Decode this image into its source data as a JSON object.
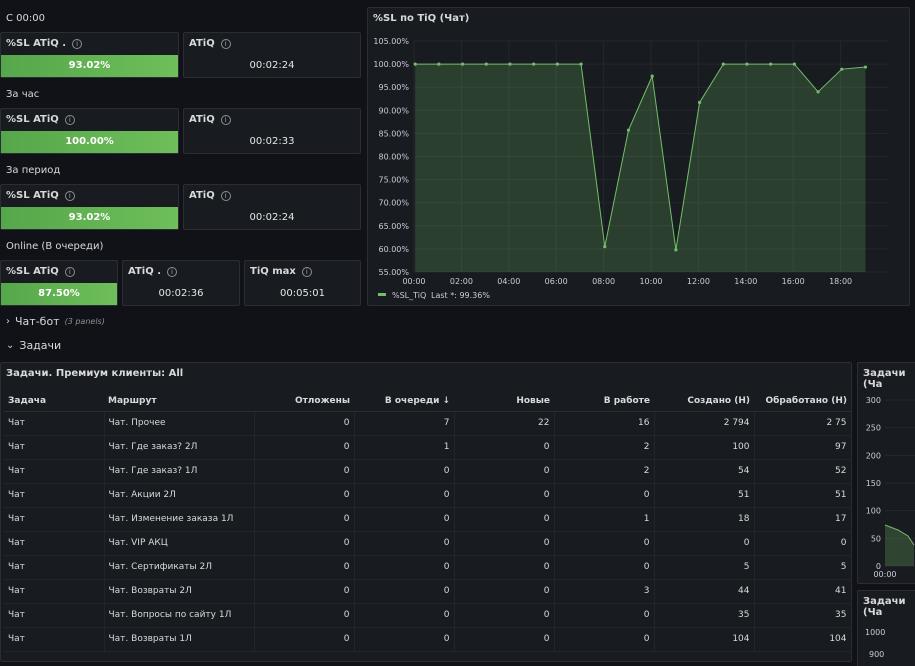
{
  "groups": [
    {
      "label": "С 00:00",
      "sl_title": "%SL ATiQ .",
      "sl_value": "93.02%",
      "atiq_title": "ATiQ",
      "atiq_value": "00:02:24"
    },
    {
      "label": "За час",
      "sl_title": "%SL ATiQ",
      "sl_value": "100.00%",
      "atiq_title": "ATiQ",
      "atiq_value": "00:02:33"
    },
    {
      "label": "За период",
      "sl_title": "%SL ATiQ",
      "sl_value": "93.02%",
      "atiq_title": "ATiQ",
      "atiq_value": "00:02:24"
    }
  ],
  "online": {
    "label": "Online (В очереди)",
    "sl_title": "%SL ATiQ",
    "sl_value": "87.50%",
    "atiq_title": "ATiQ .",
    "atiq_value": "00:02:36",
    "tiqmax_title": "TiQ max",
    "tiqmax_value": "00:05:01"
  },
  "colors": {
    "accent_green": "#56a64b",
    "line_green": "#73bf69",
    "bg": "#111217",
    "panel": "#181b1f"
  },
  "chart": {
    "title": "%SL по TiQ (Чат)",
    "legend_label": "%SL_TiQ",
    "legend_last": "Last *: 99.36%"
  },
  "chart_data": {
    "type": "area",
    "series": [
      {
        "name": "%SL_TiQ",
        "x": [
          0,
          1,
          2,
          3,
          4,
          5,
          6,
          7,
          8,
          9,
          10,
          11,
          12,
          13,
          14,
          15,
          16,
          17,
          18,
          19
        ],
        "values": [
          100,
          100,
          100,
          100,
          100,
          100,
          100,
          100,
          60.5,
          85.7,
          97.4,
          59.8,
          91.7,
          100,
          100,
          100,
          100,
          94,
          98.9,
          99.36
        ]
      }
    ],
    "x_ticks": [
      "00:00",
      "02:00",
      "04:00",
      "06:00",
      "08:00",
      "10:00",
      "12:00",
      "14:00",
      "16:00",
      "18:00"
    ],
    "y_ticks": [
      "105.00%",
      "100.00%",
      "95.00%",
      "90.00%",
      "85.00%",
      "80.00%",
      "75.00%",
      "70.00%",
      "65.00%",
      "60.00%",
      "55.00%"
    ],
    "ylim": [
      55,
      105
    ],
    "xlim": [
      0,
      20
    ],
    "grid": true,
    "legend": "bottom-left"
  },
  "rows": {
    "chatbot": {
      "title": "Чат-бот",
      "sub": "(3 panels)"
    },
    "tasks": {
      "title": "Задачи"
    }
  },
  "table": {
    "title": "Задачи. Премиум клиенты: All",
    "columns": [
      "Задача",
      "Маршрут",
      "Отложены",
      "В очереди",
      "Новые",
      "В работе",
      "Создано (Н)",
      "Обработано (Н)"
    ],
    "sort_icon": "arrow-down-icon",
    "rows": [
      [
        "Чат",
        "Чат. Прочее",
        "0",
        "7",
        "22",
        "16",
        "2 794",
        "2 75"
      ],
      [
        "Чат",
        "Чат. Где заказ? 2Л",
        "0",
        "1",
        "0",
        "2",
        "100",
        "97"
      ],
      [
        "Чат",
        "Чат. Где заказ? 1Л",
        "0",
        "0",
        "0",
        "2",
        "54",
        "52"
      ],
      [
        "Чат",
        "Чат. Акции 2Л",
        "0",
        "0",
        "0",
        "0",
        "51",
        "51"
      ],
      [
        "Чат",
        "Чат. Изменение заказа 1Л",
        "0",
        "0",
        "0",
        "1",
        "18",
        "17"
      ],
      [
        "Чат",
        "Чат. VIP АКЦ",
        "0",
        "0",
        "0",
        "0",
        "0",
        "0"
      ],
      [
        "Чат",
        "Чат. Сертификаты 2Л",
        "0",
        "0",
        "0",
        "0",
        "5",
        "5"
      ],
      [
        "Чат",
        "Чат. Возвраты 2Л",
        "0",
        "0",
        "0",
        "3",
        "44",
        "41"
      ],
      [
        "Чат",
        "Чат. Вопросы по сайту 1Л",
        "0",
        "0",
        "0",
        "0",
        "35",
        "35"
      ],
      [
        "Чат",
        "Чат. Возвраты 1Л",
        "0",
        "0",
        "0",
        "0",
        "104",
        "104"
      ]
    ]
  },
  "side_panels": {
    "top": {
      "title": "Задачи (Ча",
      "y_ticks": [
        "300",
        "250",
        "200",
        "150",
        "100",
        "50",
        "0"
      ],
      "x_tick": "00:00"
    },
    "bottom": {
      "title": "Задачи (Ча",
      "y_ticks": [
        "1000",
        "900"
      ]
    }
  }
}
